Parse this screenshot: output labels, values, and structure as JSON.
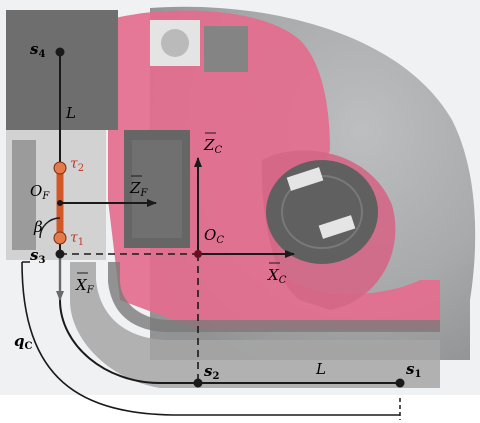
{
  "labels": {
    "s4": "s",
    "s4_sub": "4",
    "s3": "s",
    "s3_sub": "3",
    "s2": "s",
    "s2_sub": "2",
    "s1": "s",
    "s1_sub": "1",
    "L_vertical": "L",
    "L_horizontal": "L",
    "tau2": "τ",
    "tau2_sub": "2",
    "tau1": "τ",
    "tau1_sub": "1",
    "O_F": "O",
    "O_F_sub": "F",
    "Z_F": "Z",
    "Z_F_sub": "F",
    "X_F": "X",
    "X_F_sub": "F",
    "beta": "β",
    "Z_C": "Z",
    "Z_C_sub": "C",
    "X_C": "X",
    "X_C_sub": "C",
    "O_C": "O",
    "O_C_sub": "C",
    "q_C": "q",
    "q_C_sub": "C"
  },
  "colors": {
    "machine_red": "#d8285a",
    "machine_grey": "#8a8a8a",
    "arrow_dark": "#1a1a1a",
    "actuator_orange": "#d2582a",
    "backdrop": "#e6e8ea"
  }
}
